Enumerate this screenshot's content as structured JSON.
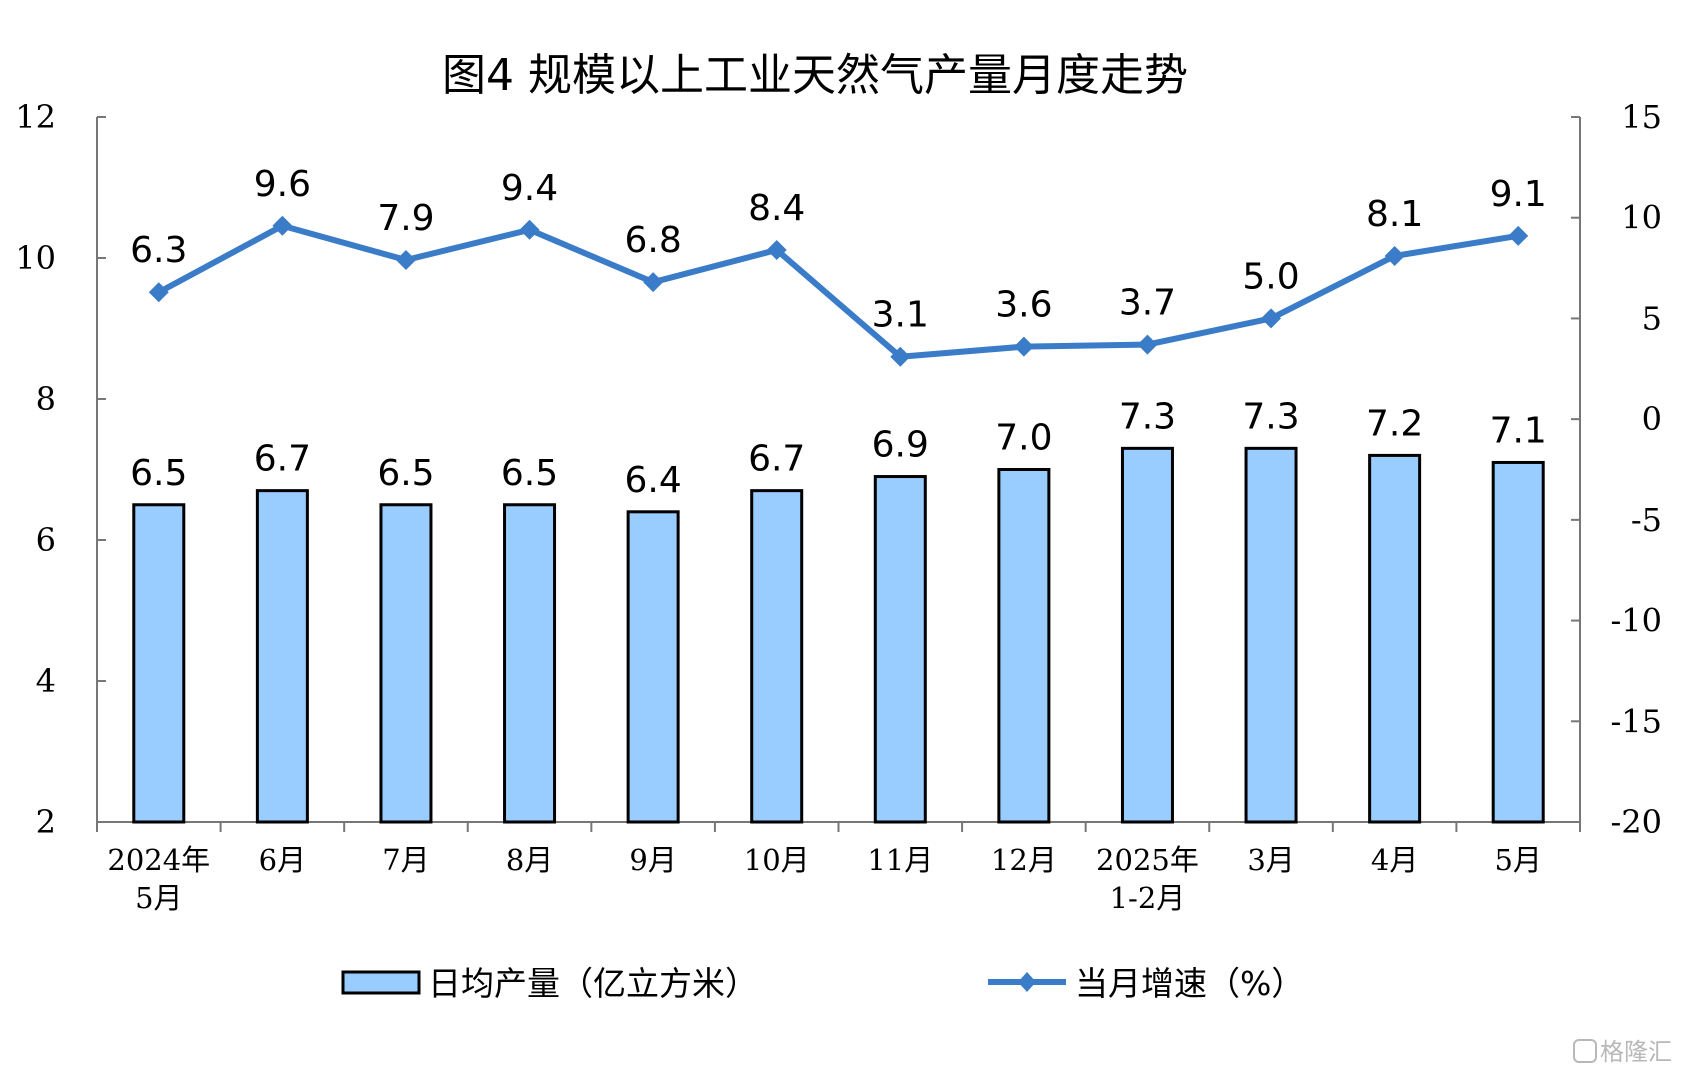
{
  "chart_data": {
    "type": "bar+line",
    "title": "图4  规模以上工业天然气产量月度走势",
    "categories": [
      [
        "2024年",
        "5月"
      ],
      [
        "6月"
      ],
      [
        "7月"
      ],
      [
        "8月"
      ],
      [
        "9月"
      ],
      [
        "10月"
      ],
      [
        "11月"
      ],
      [
        "12月"
      ],
      [
        "2025年",
        "1-2月"
      ],
      [
        "3月"
      ],
      [
        "4月"
      ],
      [
        "5月"
      ]
    ],
    "series": [
      {
        "name": "日均产量（亿立方米）",
        "type": "bar",
        "axis": "left",
        "color": "#99ccff",
        "values": [
          6.5,
          6.7,
          6.5,
          6.5,
          6.4,
          6.7,
          6.9,
          7.0,
          7.3,
          7.3,
          7.2,
          7.1
        ],
        "labels": [
          "6.5",
          "6.7",
          "6.5",
          "6.5",
          "6.4",
          "6.7",
          "6.9",
          "7.0",
          "7.3",
          "7.3",
          "7.2",
          "7.1"
        ]
      },
      {
        "name": "当月增速（%）",
        "type": "line",
        "axis": "right",
        "color": "#3a7cc7",
        "values": [
          6.3,
          9.6,
          7.9,
          9.4,
          6.8,
          8.4,
          3.1,
          3.6,
          3.7,
          5.0,
          8.1,
          9.1
        ],
        "labels": [
          "6.3",
          "9.6",
          "7.9",
          "9.4",
          "6.8",
          "8.4",
          "3.1",
          "3.6",
          "3.7",
          "5.0",
          "8.1",
          "9.1"
        ]
      }
    ],
    "y_left": {
      "min": 2,
      "max": 12,
      "ticks": [
        "2",
        "4",
        "6",
        "8",
        "10",
        "12"
      ]
    },
    "y_right": {
      "min": -20,
      "max": 15,
      "ticks": [
        "-20",
        "-15",
        "-10",
        "-5",
        "0",
        "5",
        "10",
        "15"
      ]
    },
    "legend": "bottom-center",
    "grid": false
  },
  "watermark": "格隆汇"
}
